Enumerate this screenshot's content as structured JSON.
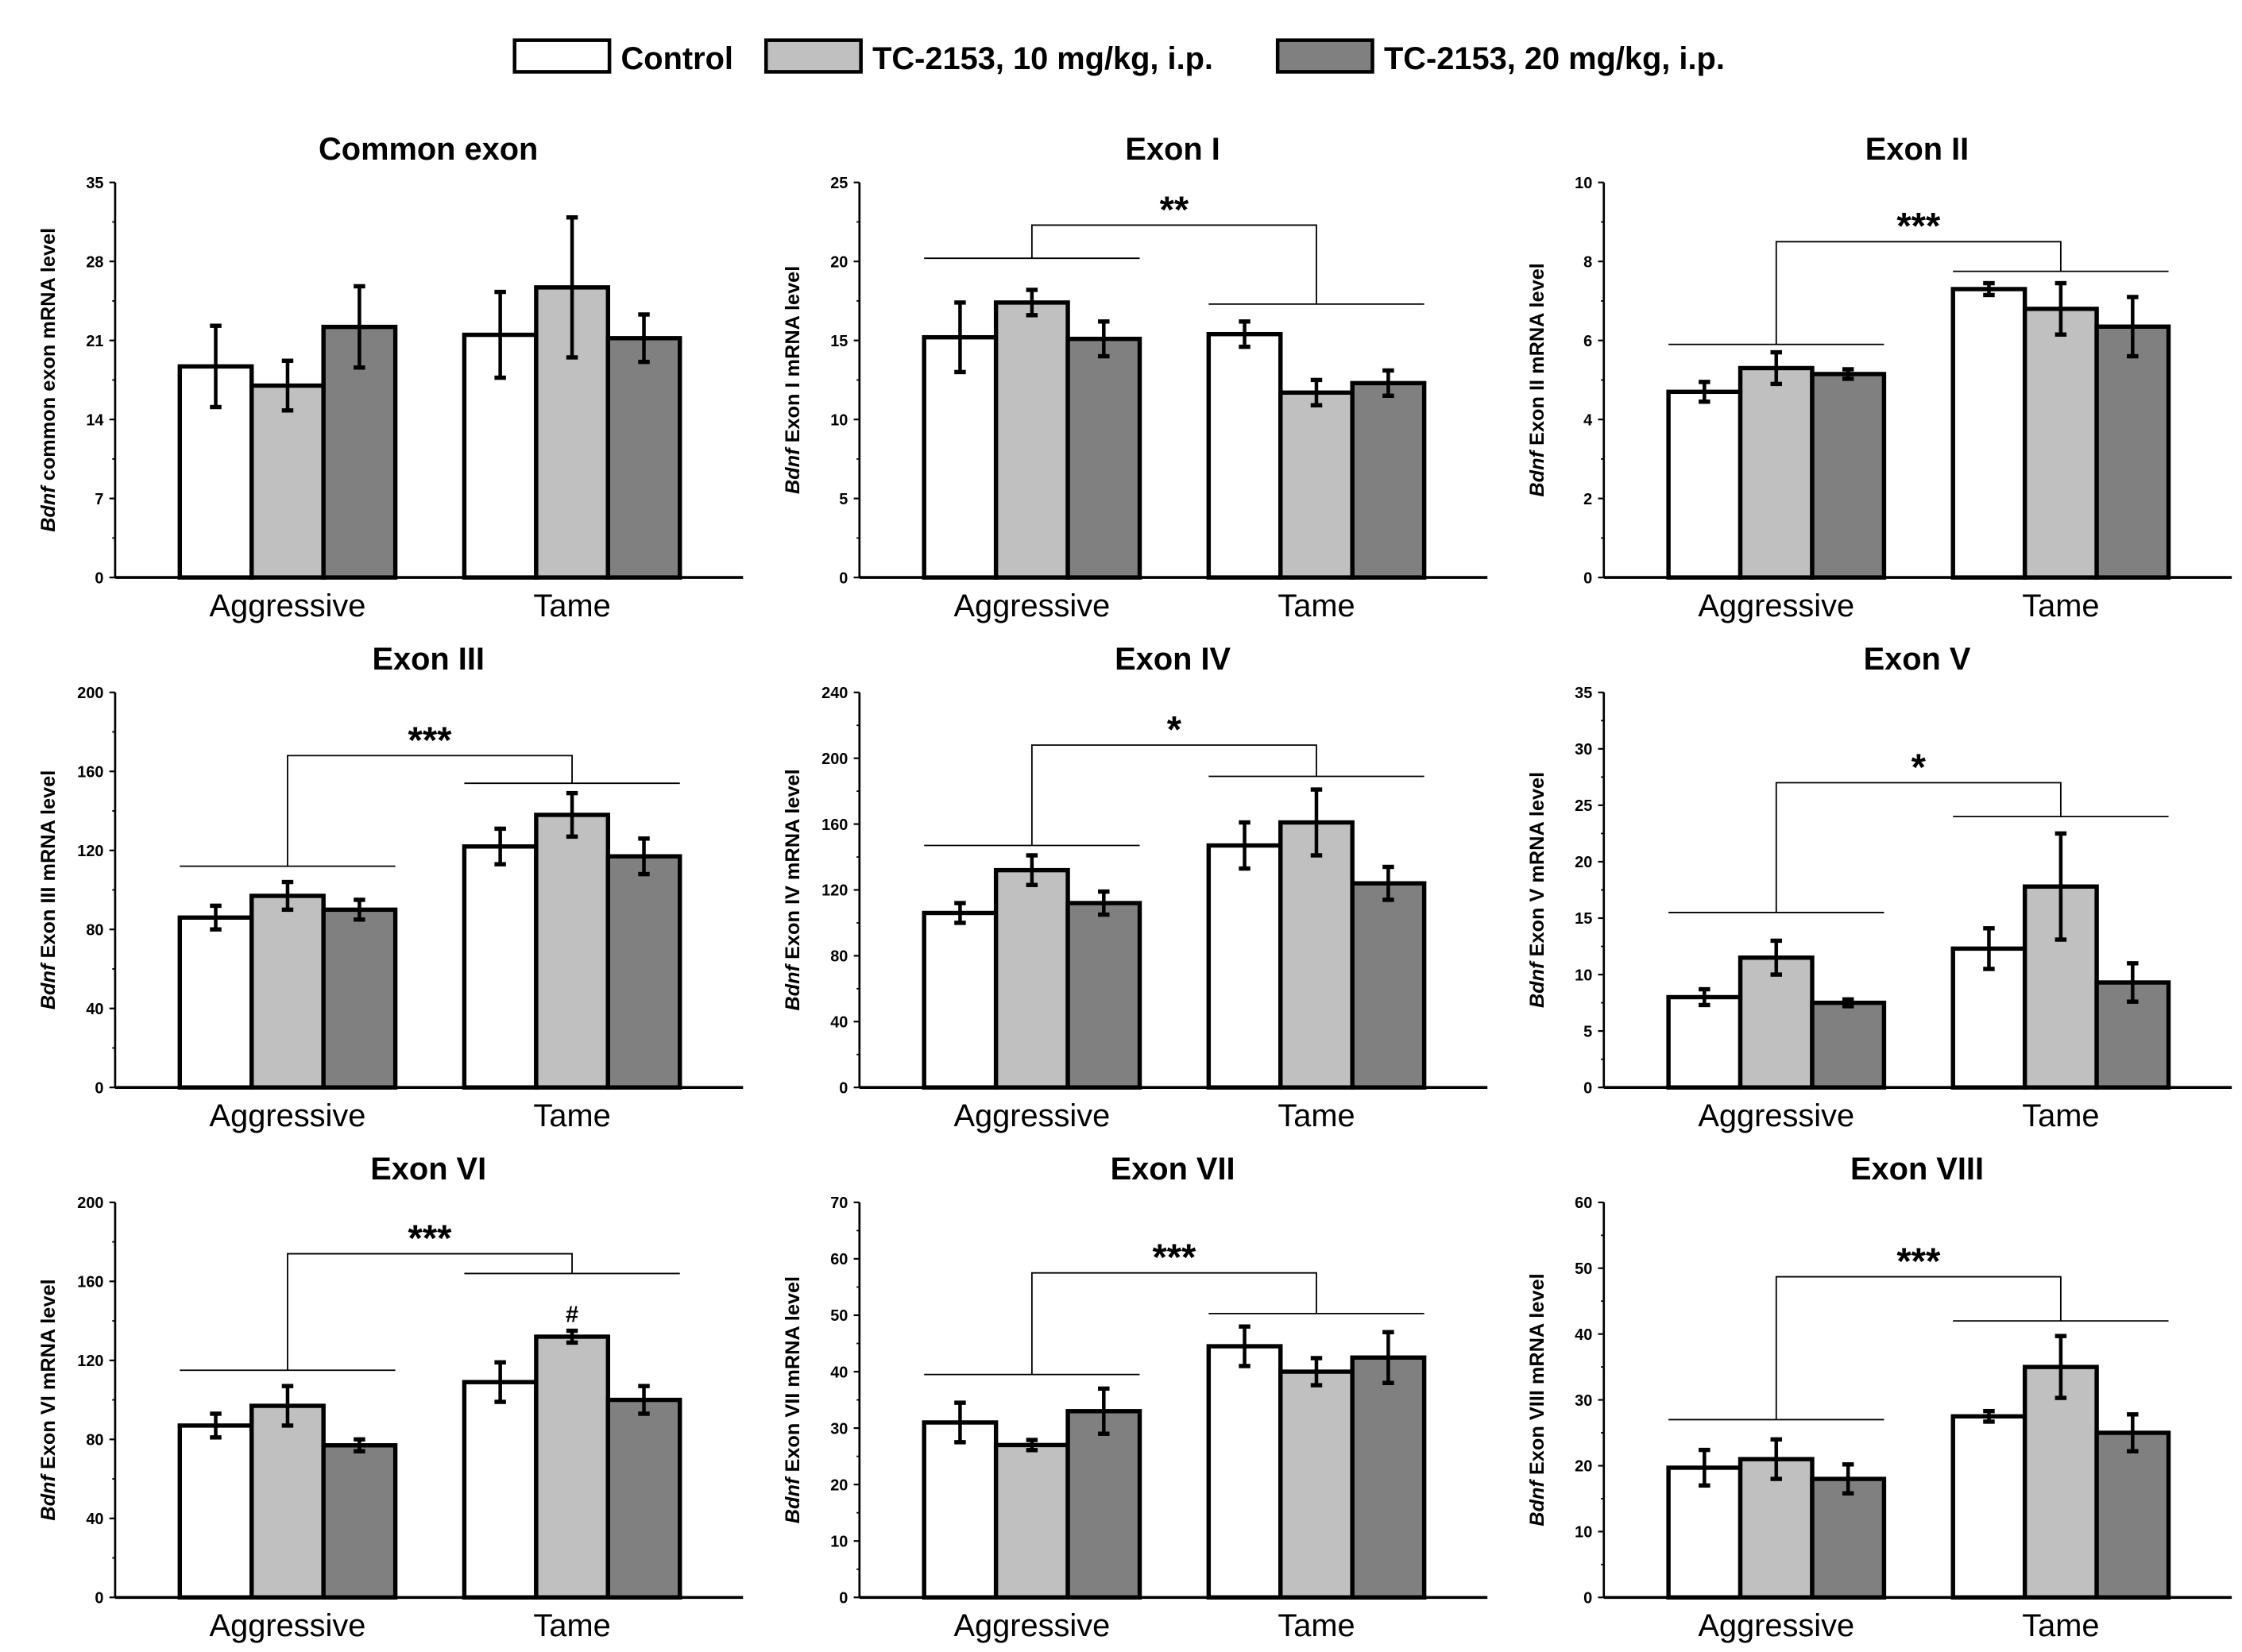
{
  "legend": [
    {
      "label": "Control",
      "color": "#ffffff"
    },
    {
      "label": "TC-2153, 10 mg/kg, i.p.",
      "color": "#c0c0c0"
    },
    {
      "label": "TC-2153, 20 mg/kg, i.p.",
      "color": "#808080"
    }
  ],
  "chart_data": [
    {
      "type": "bar",
      "title": "Common exon",
      "ylabel_italic": "Bdnf",
      "ylabel": " common exon mRNA level",
      "categories": [
        "Aggressive",
        "Tame"
      ],
      "ylim": [
        0,
        35
      ],
      "yticks": [
        0,
        7,
        14,
        21,
        28,
        35
      ],
      "series": [
        {
          "name": "Control",
          "values": [
            18.7,
            21.5
          ],
          "err": [
            3.6,
            3.8
          ]
        },
        {
          "name": "TC-2153, 10 mg/kg, i.p.",
          "values": [
            17.0,
            25.7
          ],
          "err": [
            2.2,
            6.2
          ]
        },
        {
          "name": "TC-2153, 20 mg/kg, i.p.",
          "values": [
            22.2,
            21.2
          ],
          "err": [
            3.6,
            2.1
          ]
        }
      ],
      "bracket": null,
      "annotations": []
    },
    {
      "type": "bar",
      "title": "Exon I",
      "ylabel_italic": "Bdnf",
      "ylabel": " Exon I mRNA level",
      "categories": [
        "Aggressive",
        "Tame"
      ],
      "ylim": [
        0,
        25
      ],
      "yticks": [
        0,
        5,
        10,
        15,
        20,
        25
      ],
      "series": [
        {
          "name": "Control",
          "values": [
            15.2,
            15.4
          ],
          "err": [
            2.2,
            0.8
          ]
        },
        {
          "name": "TC-2153, 10 mg/kg, i.p.",
          "values": [
            17.4,
            11.7
          ],
          "err": [
            0.8,
            0.8
          ]
        },
        {
          "name": "TC-2153, 20 mg/kg, i.p.",
          "values": [
            15.1,
            12.3
          ],
          "err": [
            1.1,
            0.8
          ]
        }
      ],
      "bracket": {
        "sig": "**",
        "agg": 20.2,
        "tame": 17.3,
        "top": 22.3
      },
      "annotations": []
    },
    {
      "type": "bar",
      "title": "Exon II",
      "ylabel_italic": "Bdnf",
      "ylabel": " Exon II mRNA level",
      "categories": [
        "Aggressive",
        "Tame"
      ],
      "ylim": [
        0,
        10
      ],
      "yticks": [
        0,
        2,
        4,
        6,
        8,
        10
      ],
      "series": [
        {
          "name": "Control",
          "values": [
            4.7,
            7.3
          ],
          "err": [
            0.25,
            0.15
          ]
        },
        {
          "name": "TC-2153, 10 mg/kg, i.p.",
          "values": [
            5.3,
            6.8
          ],
          "err": [
            0.4,
            0.65
          ]
        },
        {
          "name": "TC-2153, 20 mg/kg, i.p.",
          "values": [
            5.15,
            6.35
          ],
          "err": [
            0.12,
            0.75
          ]
        }
      ],
      "bracket": {
        "sig": "***",
        "agg": 5.9,
        "tame": 7.75,
        "top": 8.5
      },
      "annotations": []
    },
    {
      "type": "bar",
      "title": "Exon III",
      "ylabel_italic": "Bdnf",
      "ylabel": " Exon III mRNA level",
      "categories": [
        "Aggressive",
        "Tame"
      ],
      "ylim": [
        0,
        200
      ],
      "yticks": [
        0,
        40,
        80,
        120,
        160,
        200
      ],
      "series": [
        {
          "name": "Control",
          "values": [
            86,
            122
          ],
          "err": [
            6,
            9
          ]
        },
        {
          "name": "TC-2153, 10 mg/kg, i.p.",
          "values": [
            97,
            138
          ],
          "err": [
            7,
            11
          ]
        },
        {
          "name": "TC-2153, 20 mg/kg, i.p.",
          "values": [
            90,
            117
          ],
          "err": [
            5,
            9
          ]
        }
      ],
      "bracket": {
        "sig": "***",
        "agg": 112,
        "tame": 154,
        "top": 168
      },
      "annotations": []
    },
    {
      "type": "bar",
      "title": "Exon IV",
      "ylabel_italic": "Bdnf",
      "ylabel": " Exon IV mRNA level",
      "categories": [
        "Aggressive",
        "Tame"
      ],
      "ylim": [
        0,
        240
      ],
      "yticks": [
        0,
        40,
        80,
        120,
        160,
        200,
        240
      ],
      "series": [
        {
          "name": "Control",
          "values": [
            106,
            147
          ],
          "err": [
            6,
            14
          ]
        },
        {
          "name": "TC-2153, 10 mg/kg, i.p.",
          "values": [
            132,
            161
          ],
          "err": [
            9,
            20
          ]
        },
        {
          "name": "TC-2153, 20 mg/kg, i.p.",
          "values": [
            112,
            124
          ],
          "err": [
            7,
            10
          ]
        }
      ],
      "bracket": {
        "sig": "*",
        "agg": 147,
        "tame": 189,
        "top": 208
      },
      "annotations": []
    },
    {
      "type": "bar",
      "title": "Exon V",
      "ylabel_italic": "Bdnf",
      "ylabel": " Exon V mRNA level",
      "categories": [
        "Aggressive",
        "Tame"
      ],
      "ylim": [
        0,
        35
      ],
      "yticks": [
        0,
        5,
        10,
        15,
        20,
        25,
        30,
        35
      ],
      "series": [
        {
          "name": "Control",
          "values": [
            8.0,
            12.3
          ],
          "err": [
            0.7,
            1.8
          ]
        },
        {
          "name": "TC-2153, 10 mg/kg, i.p.",
          "values": [
            11.5,
            17.8
          ],
          "err": [
            1.5,
            4.7
          ]
        },
        {
          "name": "TC-2153, 20 mg/kg, i.p.",
          "values": [
            7.5,
            9.3
          ],
          "err": [
            0.3,
            1.7
          ]
        }
      ],
      "bracket": {
        "sig": "*",
        "agg": 15.5,
        "tame": 24,
        "top": 27
      },
      "annotations": []
    },
    {
      "type": "bar",
      "title": "Exon VI",
      "ylabel_italic": "Bdnf",
      "ylabel": " Exon VI mRNA level",
      "categories": [
        "Aggressive",
        "Tame"
      ],
      "ylim": [
        0,
        200
      ],
      "yticks": [
        0,
        40,
        80,
        120,
        160,
        200
      ],
      "series": [
        {
          "name": "Control",
          "values": [
            87,
            109
          ],
          "err": [
            6,
            10
          ]
        },
        {
          "name": "TC-2153, 10 mg/kg, i.p.",
          "values": [
            97,
            132
          ],
          "err": [
            10,
            3
          ]
        },
        {
          "name": "TC-2153, 20 mg/kg, i.p.",
          "values": [
            77,
            100
          ],
          "err": [
            3,
            7
          ]
        }
      ],
      "bracket": {
        "sig": "***",
        "agg": 115,
        "tame": 164,
        "top": 174
      },
      "annotations": [
        {
          "text": "#",
          "category": "Tame",
          "series": 1
        }
      ]
    },
    {
      "type": "bar",
      "title": "Exon VII",
      "ylabel_italic": "Bdnf",
      "ylabel": " Exon VII mRNA level",
      "categories": [
        "Aggressive",
        "Tame"
      ],
      "ylim": [
        0,
        70
      ],
      "yticks": [
        0,
        10,
        20,
        30,
        40,
        50,
        60,
        70
      ],
      "series": [
        {
          "name": "Control",
          "values": [
            31,
            44.5
          ],
          "err": [
            3.5,
            3.5
          ]
        },
        {
          "name": "TC-2153, 10 mg/kg, i.p.",
          "values": [
            27,
            40
          ],
          "err": [
            0.9,
            2.4
          ]
        },
        {
          "name": "TC-2153, 20 mg/kg, i.p.",
          "values": [
            33,
            42.5
          ],
          "err": [
            4,
            4.5
          ]
        }
      ],
      "bracket": {
        "sig": "***",
        "agg": 39.5,
        "tame": 50.3,
        "top": 57.5
      },
      "annotations": []
    },
    {
      "type": "bar",
      "title": "Exon VIII",
      "ylabel_italic": "Bdnf",
      "ylabel": " Exon VIII mRNA level",
      "categories": [
        "Aggressive",
        "Tame"
      ],
      "ylim": [
        0,
        60
      ],
      "yticks": [
        0,
        10,
        20,
        30,
        40,
        50,
        60
      ],
      "series": [
        {
          "name": "Control",
          "values": [
            19.7,
            27.5
          ],
          "err": [
            2.7,
            0.8
          ]
        },
        {
          "name": "TC-2153, 10 mg/kg, i.p.",
          "values": [
            21,
            35
          ],
          "err": [
            3,
            4.7
          ]
        },
        {
          "name": "TC-2153, 20 mg/kg, i.p.",
          "values": [
            18,
            25
          ],
          "err": [
            2.2,
            2.8
          ]
        }
      ],
      "bracket": {
        "sig": "***",
        "agg": 27,
        "tame": 42,
        "top": 48.7
      },
      "annotations": []
    }
  ]
}
